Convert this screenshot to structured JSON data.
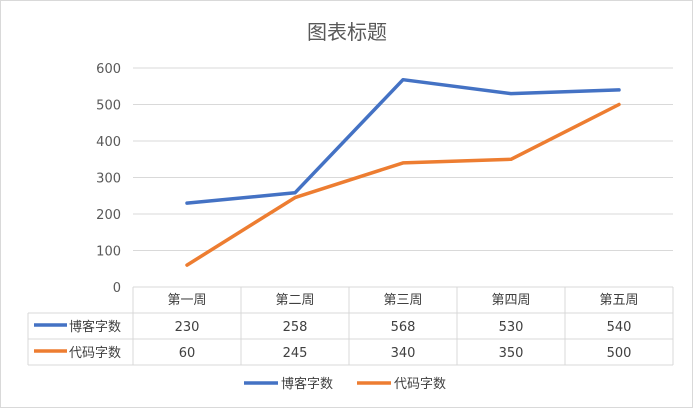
{
  "chart_data": {
    "type": "line",
    "title": "图表标题",
    "categories": [
      "第一周",
      "第二周",
      "第三周",
      "第四周",
      "第五周"
    ],
    "series": [
      {
        "name": "博客字数",
        "values": [
          230,
          258,
          568,
          530,
          540
        ],
        "color": "#4472C4"
      },
      {
        "name": "代码字数",
        "values": [
          60,
          245,
          340,
          350,
          500
        ],
        "color": "#ED7D31"
      }
    ],
    "ylim": [
      0,
      600
    ],
    "yticks": [
      "0",
      "100",
      "200",
      "300",
      "400",
      "500",
      "600"
    ],
    "grid": true,
    "data_table": true,
    "legend_position": "bottom"
  }
}
